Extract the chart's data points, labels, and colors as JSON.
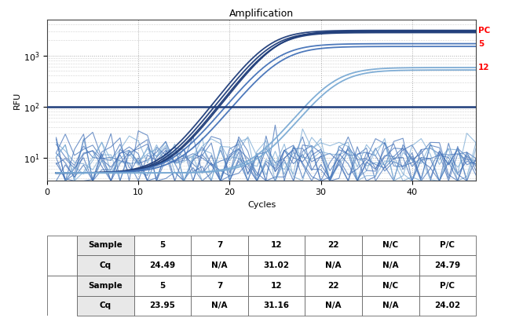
{
  "title": "Amplification",
  "xlabel": "Cycles",
  "ylabel": "RFU",
  "xlim": [
    0,
    47
  ],
  "ylim_log": [
    3.5,
    5000
  ],
  "threshold": 100,
  "line_color_dark": "#1f3d7a",
  "line_color_mid": "#4472b8",
  "line_color_light": "#7aaad4",
  "background_color": "#ffffff",
  "plot_bg_color": "#ffffff",
  "grid_color": "#aaaaaa",
  "table": {
    "G_sample": [
      "Sample",
      "5",
      "7",
      "12",
      "22",
      "N/C",
      "P/C"
    ],
    "G_cq": [
      "Cq",
      "24.49",
      "N/A",
      "31.02",
      "N/A",
      "N/A",
      "24.79"
    ],
    "H_sample": [
      "Sample",
      "5",
      "7",
      "12",
      "22",
      "N/C",
      "P/C"
    ],
    "H_cq": [
      "Cq",
      "23.95",
      "N/A",
      "31.16",
      "N/A",
      "N/A",
      "24.02"
    ]
  }
}
